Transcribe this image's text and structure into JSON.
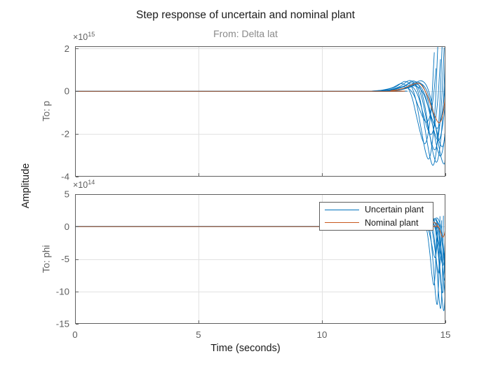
{
  "chart": {
    "title": "Step response of uncertain and nominal plant",
    "column_title": "From: Delta lat",
    "xlabel": "Time (seconds)",
    "ylabel": "Amplitude",
    "legend": {
      "position": "top-right of lower subplot",
      "entries": [
        {
          "label": "Uncertain plant",
          "color": "#0072BD"
        },
        {
          "label": "Nominal plant",
          "color": "#C8591E"
        }
      ]
    },
    "subplots": [
      {
        "row_label": "To: p",
        "exponent_prefix": "×10",
        "exponent": "15",
        "unit_scale": "1e15"
      },
      {
        "row_label": "To: phi",
        "exponent_prefix": "×10",
        "exponent": "14",
        "unit_scale": "1e14"
      }
    ]
  },
  "chart_data": {
    "type": "line",
    "title": "Step response of uncertain and nominal plant",
    "column_title": "From: Delta lat",
    "xlabel": "Time (seconds)",
    "ylabel": "Amplitude",
    "xlim": [
      0,
      15
    ],
    "x_ticks": [
      0,
      5,
      10,
      15
    ],
    "grid": true,
    "colors": {
      "uncertain": "#0072BD",
      "nominal": "#C8591E",
      "grid": "#e2e2e2",
      "axis": "#5f5f5f",
      "tick_label": "#5e5e5e"
    },
    "subplots": [
      {
        "row_label": "To: p",
        "exponent": 15,
        "ylim": [
          -4.0,
          2.11
        ],
        "y_ticks": [
          2,
          0,
          -2,
          -4
        ],
        "grid_y_values": [
          2,
          0,
          -2
        ],
        "grid_x_values": [
          5,
          10
        ],
        "nominal_points": [
          [
            0,
            0
          ],
          [
            12.3,
            0
          ],
          [
            12.8,
            0.03
          ],
          [
            13.3,
            0.14
          ],
          [
            13.75,
            0.35
          ],
          [
            14.0,
            0.32
          ],
          [
            14.25,
            -0.15
          ],
          [
            14.5,
            -0.95
          ],
          [
            14.7,
            -1.45
          ],
          [
            14.85,
            -1.3
          ],
          [
            14.95,
            -0.7
          ],
          [
            15,
            -0.1
          ]
        ],
        "uncertain_base": [
          [
            0,
            0
          ],
          [
            12.1,
            0
          ],
          [
            12.5,
            0.02
          ],
          [
            12.9,
            0.07
          ],
          [
            13.3,
            0.2
          ],
          [
            13.65,
            0.42
          ],
          [
            13.9,
            0.25
          ],
          [
            14.1,
            -0.35
          ],
          [
            14.3,
            -1.5
          ],
          [
            14.5,
            -2.6
          ],
          [
            14.65,
            -2.85
          ],
          [
            14.8,
            -1.9
          ],
          [
            14.9,
            -0.4
          ],
          [
            14.96,
            1.1
          ],
          [
            15,
            2.15
          ]
        ],
        "uncertain_samples": [
          {
            "shift": -0.45,
            "scale": 0.85
          },
          {
            "shift": -0.3,
            "scale": 1.1
          },
          {
            "shift": -0.2,
            "scale": 0.7
          },
          {
            "shift": -0.12,
            "scale": 1.2
          },
          {
            "shift": -0.05,
            "scale": 0.95
          },
          {
            "shift": 0.02,
            "scale": 1.15
          },
          {
            "shift": 0.1,
            "scale": 0.8
          },
          {
            "shift": 0.18,
            "scale": 1.05
          },
          {
            "shift": 0.25,
            "scale": 0.9
          },
          {
            "shift": 0.32,
            "scale": 1.18
          },
          {
            "shift": 0.05,
            "scale": 0.6
          },
          {
            "shift": -0.38,
            "scale": 0.5
          }
        ]
      },
      {
        "row_label": "To: phi",
        "exponent": 14,
        "ylim": [
          -15,
          5
        ],
        "y_ticks": [
          5,
          0,
          -5,
          -10,
          -15
        ],
        "grid_y_values": [
          0,
          -5,
          -10
        ],
        "grid_x_values": [
          5,
          10
        ],
        "nominal_points": [
          [
            0,
            0
          ],
          [
            13.6,
            0
          ],
          [
            14.0,
            0.1
          ],
          [
            14.35,
            0.45
          ],
          [
            14.6,
            0.55
          ],
          [
            14.75,
            -0.3
          ],
          [
            14.88,
            -1.6
          ],
          [
            14.96,
            -1.2
          ],
          [
            15,
            -0.2
          ]
        ],
        "uncertain_base": [
          [
            0,
            0
          ],
          [
            13.2,
            0
          ],
          [
            13.6,
            0.08
          ],
          [
            13.95,
            0.35
          ],
          [
            14.25,
            1.0
          ],
          [
            14.45,
            1.15
          ],
          [
            14.6,
            -0.8
          ],
          [
            14.72,
            -5.5
          ],
          [
            14.82,
            -10.5
          ],
          [
            14.9,
            -11.8
          ],
          [
            14.96,
            -6.5
          ],
          [
            15,
            1.6
          ]
        ],
        "uncertain_samples": [
          {
            "shift": -0.35,
            "scale": 0.75
          },
          {
            "shift": -0.22,
            "scale": 1.0
          },
          {
            "shift": -0.15,
            "scale": 0.6
          },
          {
            "shift": -0.08,
            "scale": 1.05
          },
          {
            "shift": 0.0,
            "scale": 0.85
          },
          {
            "shift": 0.05,
            "scale": 1.08
          },
          {
            "shift": 0.1,
            "scale": 0.7
          },
          {
            "shift": 0.15,
            "scale": 0.95
          },
          {
            "shift": 0.2,
            "scale": 0.8
          },
          {
            "shift": 0.25,
            "scale": 1.05
          },
          {
            "shift": 0.02,
            "scale": 0.5
          },
          {
            "shift": -0.3,
            "scale": 0.4
          }
        ]
      }
    ],
    "legend": {
      "entries": [
        {
          "label": "Uncertain plant",
          "color": "#0072BD"
        },
        {
          "label": "Nominal plant",
          "color": "#C8591E"
        }
      ]
    }
  }
}
